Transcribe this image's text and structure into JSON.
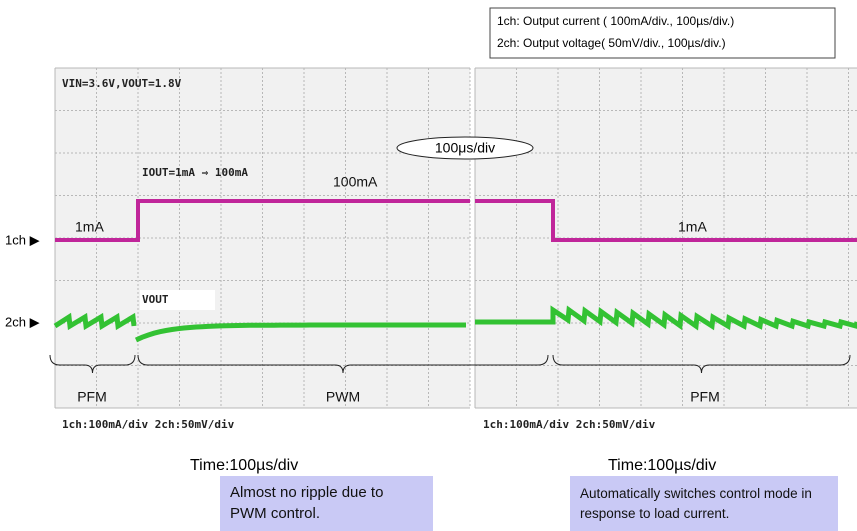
{
  "legend": [
    "1ch: Output current ( 100mA/div., 100µs/div.)",
    "2ch: Output voltage( 50mV/div., 100µs/div.)"
  ],
  "conditions": "VIN=3.6V,VOUT=1.8V",
  "timebase": "100μs/div",
  "step_label": "IOUT=1mA ⇒ 100mA",
  "current_high": "100mA",
  "current_low_left": "1mA",
  "current_low_right": "1mA",
  "channel_1": "1ch ▶",
  "channel_2": "2ch ▶",
  "vout_label": "VOUT",
  "modes": [
    "PFM",
    "PWM",
    "PFM"
  ],
  "scale_left": "1ch:100mA/div 2ch:50mV/div",
  "scale_right": "1ch:100mA/div 2ch:50mV/div",
  "time_left": "Time:100µs/div",
  "time_right": "Time:100µs/div",
  "callout_left": "Almost no ripple due to PWM control.",
  "callout_right": "Automatically switches control mode in response to load current."
}
